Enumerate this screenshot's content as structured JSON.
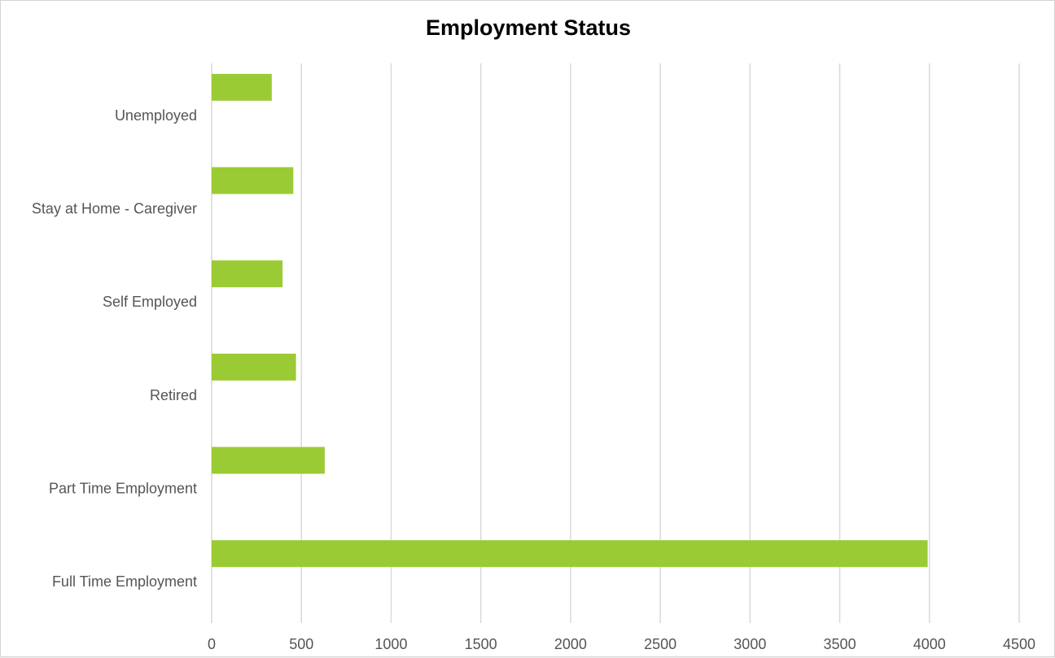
{
  "chart_data": {
    "type": "bar",
    "orientation": "horizontal",
    "title": "Employment Status",
    "xlabel": "",
    "ylabel": "",
    "categories": [
      "Full Time  Employment",
      "Part Time Employment",
      "Retired",
      "Self Employed",
      "Stay at Home - Caregiver",
      "Unemployed"
    ],
    "values": [
      3990,
      630,
      470,
      395,
      455,
      335
    ],
    "xlim": [
      0,
      4500
    ],
    "xticks": [
      "0",
      "500",
      "1000",
      "1500",
      "2000",
      "2500",
      "3000",
      "3500",
      "4000",
      "4500"
    ],
    "grid": "vertical",
    "legend": "none",
    "bar_color": "#9acb34",
    "grid_color": "#d9d9d9"
  }
}
